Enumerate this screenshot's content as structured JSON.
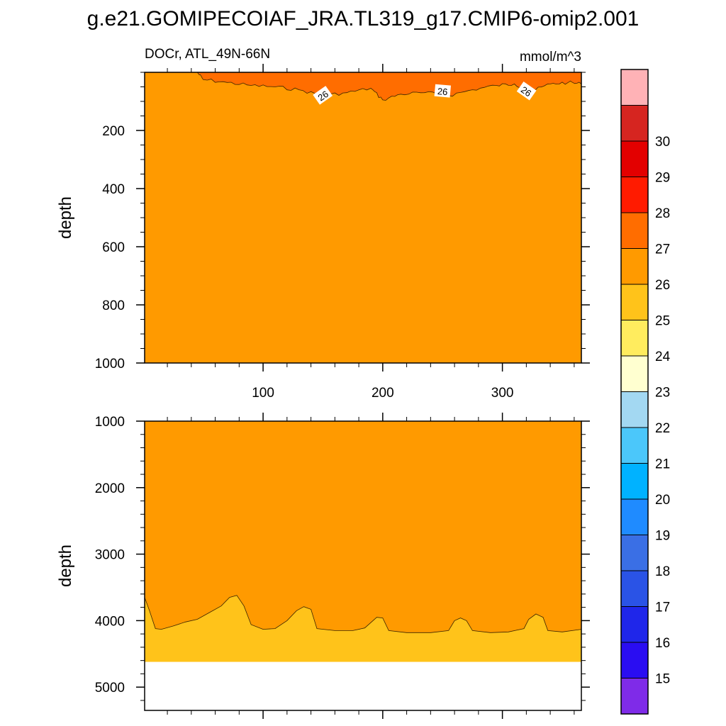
{
  "title": "g.e21.GOMIPECOIAF_JRA.TL319_g17.CMIP6-omip2.001",
  "chart_data": [
    {
      "type": "heatmap",
      "panel": "upper",
      "subtitle_left": "DOCr, ATL_49N-66N",
      "subtitle_right": "mmol/m^3",
      "ylabel": "depth",
      "xlabel": "",
      "xlim": [
        1,
        366
      ],
      "ylim": [
        1000,
        0
      ],
      "xticks": [
        100,
        200,
        300
      ],
      "yticks": [
        200,
        400,
        600,
        800,
        1000
      ],
      "background_level": "25-26",
      "regions": [
        {
          "level": "26-27",
          "contour_label": "26",
          "description_points": [
            [
              45,
              0
            ],
            [
              50,
              25
            ],
            [
              70,
              35
            ],
            [
              90,
              45
            ],
            [
              110,
              50
            ],
            [
              130,
              60
            ],
            [
              150,
              80
            ],
            [
              170,
              70
            ],
            [
              190,
              55
            ],
            [
              200,
              95
            ],
            [
              215,
              75
            ],
            [
              235,
              70
            ],
            [
              255,
              80
            ],
            [
              275,
              60
            ],
            [
              295,
              45
            ],
            [
              310,
              40
            ],
            [
              325,
              65
            ],
            [
              340,
              40
            ],
            [
              355,
              35
            ],
            [
              366,
              40
            ],
            [
              366,
              0
            ]
          ]
        }
      ],
      "contour_labels": [
        {
          "text": "26",
          "x": 150,
          "y": 80
        },
        {
          "text": "26",
          "x": 250,
          "y": 65
        },
        {
          "text": "26",
          "x": 320,
          "y": 65
        }
      ]
    },
    {
      "type": "heatmap",
      "panel": "lower",
      "ylabel": "depth",
      "xlim": [
        1,
        366
      ],
      "ylim": [
        5350,
        1000
      ],
      "xticks": [
        100,
        200,
        300
      ],
      "yticks": [
        1000,
        2000,
        3000,
        4000,
        5000
      ],
      "background_level": "25-26",
      "missing_below_depth": 4620,
      "regions": [
        {
          "level": "24-25",
          "boundary_points": [
            [
              1,
              3650
            ],
            [
              5,
              3850
            ],
            [
              10,
              4120
            ],
            [
              15,
              4130
            ],
            [
              25,
              4080
            ],
            [
              35,
              4020
            ],
            [
              45,
              3980
            ],
            [
              55,
              3880
            ],
            [
              65,
              3780
            ],
            [
              72,
              3650
            ],
            [
              78,
              3620
            ],
            [
              84,
              3780
            ],
            [
              90,
              4060
            ],
            [
              100,
              4130
            ],
            [
              110,
              4120
            ],
            [
              120,
              4000
            ],
            [
              128,
              3850
            ],
            [
              134,
              3790
            ],
            [
              140,
              3830
            ],
            [
              145,
              4120
            ],
            [
              160,
              4150
            ],
            [
              175,
              4150
            ],
            [
              185,
              4110
            ],
            [
              195,
              3950
            ],
            [
              200,
              3960
            ],
            [
              205,
              4150
            ],
            [
              220,
              4180
            ],
            [
              240,
              4180
            ],
            [
              255,
              4150
            ],
            [
              260,
              4000
            ],
            [
              265,
              3960
            ],
            [
              270,
              4000
            ],
            [
              275,
              4150
            ],
            [
              290,
              4180
            ],
            [
              305,
              4170
            ],
            [
              318,
              4120
            ],
            [
              322,
              3980
            ],
            [
              328,
              3900
            ],
            [
              334,
              3950
            ],
            [
              338,
              4150
            ],
            [
              350,
              4170
            ],
            [
              366,
              4130
            ]
          ]
        }
      ]
    }
  ],
  "colorbar": {
    "labels": [
      "15",
      "16",
      "17",
      "18",
      "19",
      "20",
      "21",
      "22",
      "23",
      "24",
      "25",
      "26",
      "27",
      "28",
      "29",
      "30"
    ],
    "colors": [
      "#7F2BE8",
      "#2A0DF2",
      "#1F26EA",
      "#2A53E6",
      "#3A6FE5",
      "#1F8BFF",
      "#00B2FF",
      "#4BC7FA",
      "#A3D8F2",
      "#FFFFD0",
      "#FFEC5E",
      "#FFC31A",
      "#FF9A00",
      "#FF6D00",
      "#FF1B00",
      "#E30000",
      "#D62520",
      "#FFB2B6"
    ]
  },
  "colors": {
    "level_25_26": "#FF9A00",
    "level_26_27": "#FF6D00",
    "level_24_25": "#FFC31A",
    "missing": "#FFFFFF"
  }
}
